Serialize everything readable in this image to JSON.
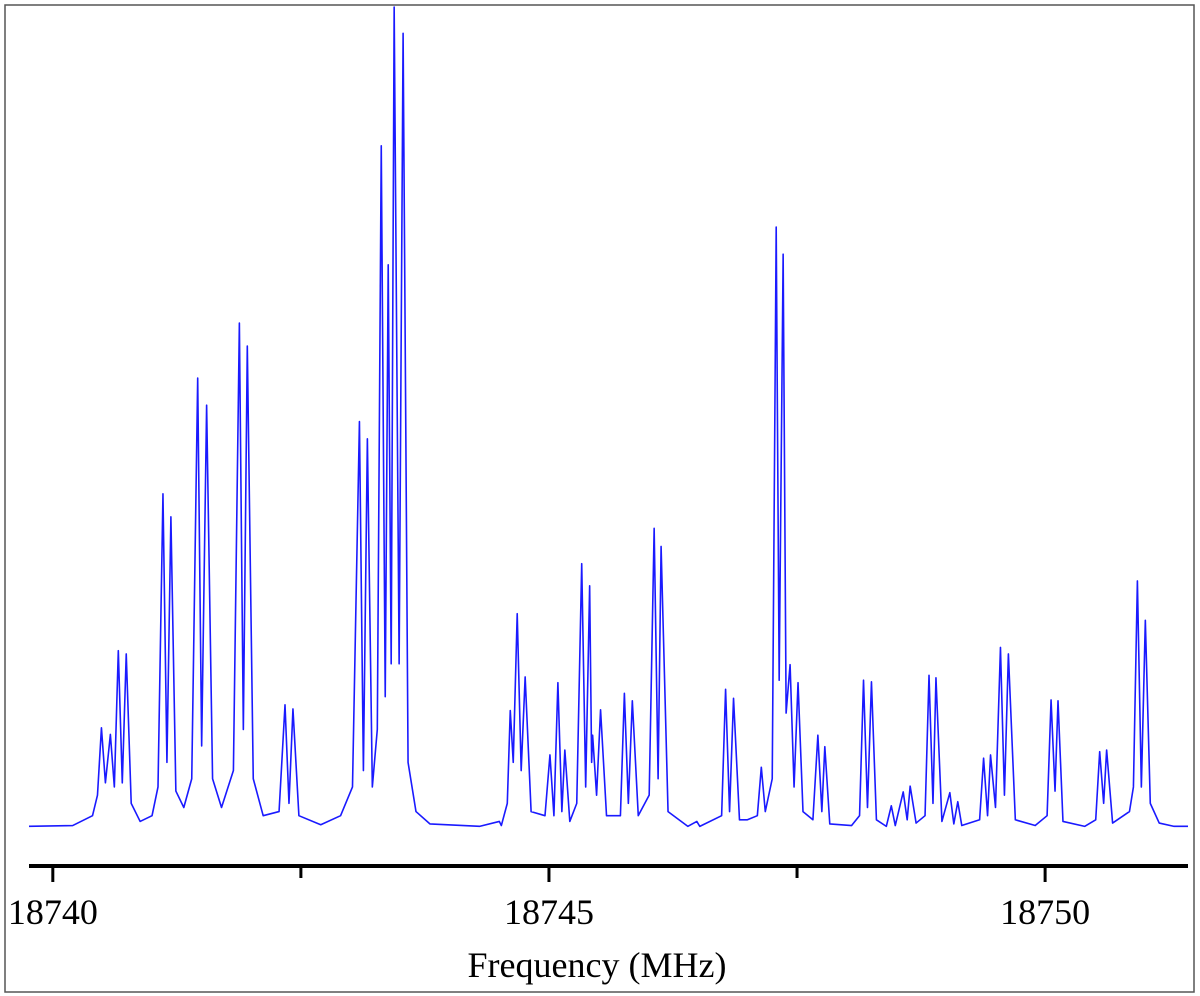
{
  "chart_data": {
    "type": "line",
    "x_label": "Frequency (MHz)",
    "xlim": [
      18739.76,
      18751.44
    ],
    "xticks": [
      18740,
      18745,
      18750
    ],
    "xminorticks": [
      18742.5,
      18747.5
    ],
    "ylim": [
      0,
      100
    ],
    "series": [
      {
        "color": "#1a1aff",
        "x": [
          18739.76,
          18740.2,
          18740.4,
          18740.45,
          18740.49,
          18740.53,
          18740.58,
          18740.62,
          18740.66,
          18740.7,
          18740.74,
          18740.79,
          18740.88,
          18741.0,
          18741.06,
          18741.11,
          18741.15,
          18741.19,
          18741.24,
          18741.32,
          18741.4,
          18741.46,
          18741.5,
          18741.55,
          18741.61,
          18741.7,
          18741.82,
          18741.88,
          18741.92,
          18741.96,
          18742.02,
          18742.12,
          18742.28,
          18742.34,
          18742.38,
          18742.42,
          18742.48,
          18742.7,
          18742.9,
          18743.02,
          18743.09,
          18743.13,
          18743.17,
          18743.22,
          18743.27,
          18743.31,
          18743.35,
          18743.38,
          18743.41,
          18743.44,
          18743.49,
          18743.53,
          18743.58,
          18743.66,
          18743.8,
          18744.3,
          18744.5,
          18744.52,
          18744.58,
          18744.61,
          18744.64,
          18744.68,
          18744.72,
          18744.76,
          18744.82,
          18744.96,
          18745.01,
          18745.05,
          18745.09,
          18745.13,
          18745.16,
          18745.21,
          18745.28,
          18745.33,
          18745.37,
          18745.41,
          18745.43,
          18745.44,
          18745.48,
          18745.52,
          18745.58,
          18745.72,
          18745.76,
          18745.8,
          18745.84,
          18745.9,
          18746.01,
          18746.06,
          18746.1,
          18746.13,
          18746.2,
          18746.4,
          18746.49,
          18746.52,
          18746.74,
          18746.78,
          18746.82,
          18746.86,
          18746.92,
          18747.0,
          18747.1,
          18747.14,
          18747.18,
          18747.25,
          18747.29,
          18747.32,
          18747.36,
          18747.39,
          18747.43,
          18747.47,
          18747.51,
          18747.56,
          18747.66,
          18747.71,
          18747.75,
          18747.78,
          18747.83,
          18748.05,
          18748.13,
          18748.17,
          18748.21,
          18748.25,
          18748.3,
          18748.4,
          18748.45,
          18748.49,
          18748.57,
          18748.61,
          18748.64,
          18748.7,
          18748.79,
          18748.83,
          18748.87,
          18748.9,
          18748.96,
          18749.04,
          18749.08,
          18749.12,
          18749.16,
          18749.34,
          18749.38,
          18749.42,
          18749.45,
          18749.5,
          18749.55,
          18749.59,
          18749.63,
          18749.7,
          18749.9,
          18750.02,
          18750.06,
          18750.1,
          18750.13,
          18750.18,
          18750.4,
          18750.51,
          18750.55,
          18750.59,
          18750.62,
          18750.68,
          18750.85,
          18750.89,
          18750.93,
          18750.97,
          18751.01,
          18751.06,
          18751.15,
          18751.3,
          18751.44
        ],
        "values": [
          0.2,
          0.3,
          1.5,
          4,
          12.2,
          5.5,
          11.4,
          5,
          21.6,
          5.5,
          21.2,
          3,
          0.8,
          1.5,
          5,
          40.7,
          8,
          37.9,
          4.5,
          2.5,
          6,
          54.8,
          10,
          51.5,
          6,
          2.5,
          7,
          61.5,
          12,
          58.7,
          6,
          1.5,
          2,
          15.0,
          3,
          14.5,
          1.5,
          0.4,
          1.5,
          5,
          49.5,
          7,
          47.4,
          5,
          12,
          83.1,
          16,
          68.6,
          20,
          100,
          20,
          96.8,
          8,
          2,
          0.5,
          0.2,
          0.8,
          0.3,
          3,
          14.3,
          8,
          26.1,
          7,
          18.4,
          2,
          1.5,
          8.9,
          1.5,
          17.7,
          2,
          9.5,
          0.8,
          3,
          32.2,
          5,
          29.5,
          8,
          11.3,
          4,
          14.4,
          1.5,
          1.5,
          16.4,
          3,
          15.5,
          1.5,
          4,
          36.5,
          6,
          34.3,
          2,
          0.2,
          0.8,
          0.2,
          1.5,
          16.9,
          2,
          15.8,
          1,
          1,
          1.5,
          7.4,
          2,
          6,
          73.2,
          18,
          69.9,
          14,
          19.9,
          5,
          17.7,
          2,
          1,
          11.3,
          2,
          9.9,
          0.5,
          0.3,
          1.5,
          18.0,
          2.5,
          17.8,
          1,
          0.2,
          2.7,
          0.3,
          4.4,
          1,
          5.1,
          0.6,
          1.5,
          18.6,
          3,
          18.3,
          0.8,
          4.3,
          0.5,
          3.2,
          0.3,
          1,
          8.5,
          1.5,
          8.9,
          2.5,
          22.0,
          4,
          21.2,
          1,
          0.3,
          1.5,
          15.6,
          4.5,
          15.5,
          0.8,
          0.2,
          1,
          9.3,
          3,
          9.5,
          0.6,
          2,
          5,
          30.1,
          5,
          25.3,
          3,
          0.6,
          0.2,
          0.2
        ]
      }
    ]
  }
}
